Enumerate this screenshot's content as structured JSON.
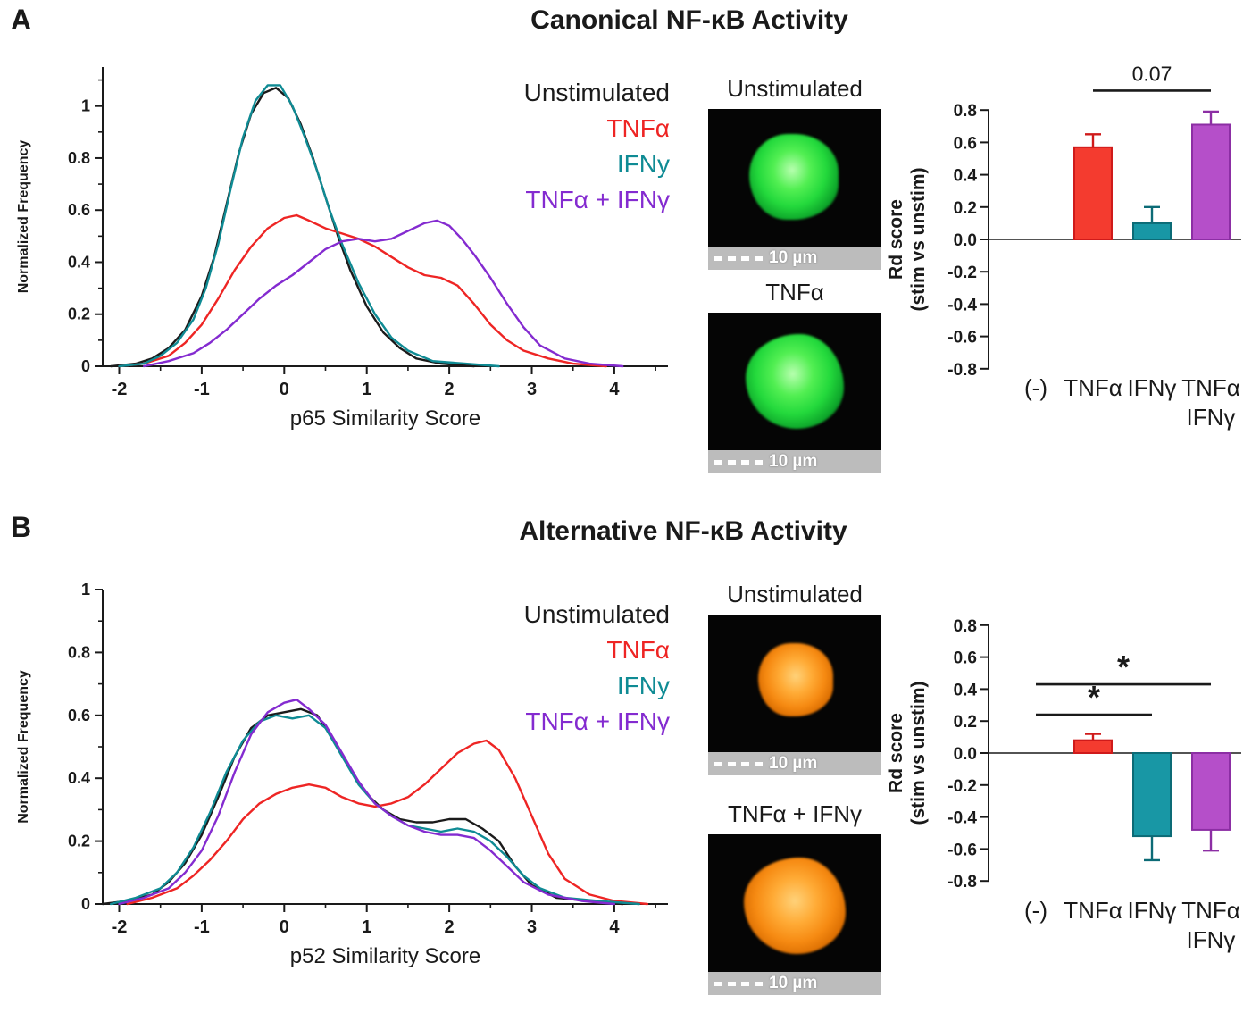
{
  "panels": [
    {
      "label": "A",
      "title": "Canonical NF-κB Activity",
      "images": [
        {
          "label": "Unstimulated",
          "scale_text": "10 µm",
          "stain": "green"
        },
        {
          "label": "TNFα",
          "scale_text": "10 µm",
          "stain": "green"
        }
      ]
    },
    {
      "label": "B",
      "title": "Alternative NF-κB Activity",
      "images": [
        {
          "label": "Unstimulated",
          "scale_text": "10 µm",
          "stain": "orange"
        },
        {
          "label": "TNFα + IFNγ",
          "scale_text": "10 µm",
          "stain": "orange"
        }
      ]
    }
  ],
  "chart_data": [
    {
      "id": "density-a",
      "type": "line",
      "panel": "A",
      "title": "Canonical NF-κB Activity",
      "xlabel": "p65 Similarity Score",
      "ylabel": "Normalized Frequency",
      "xlim": [
        -2.2,
        4.65
      ],
      "ylim": [
        0,
        1.15
      ],
      "xticks": [
        -2,
        -1,
        0,
        1,
        2,
        3,
        4
      ],
      "yticks": [
        0,
        0.2,
        0.4,
        0.6,
        0.8,
        1
      ],
      "legend_position": "top-right",
      "grid": false,
      "series": [
        {
          "name": "Unstimulated",
          "color": "#1b1b1b",
          "points": [
            [
              -2.1,
              0
            ],
            [
              -1.8,
              0.01
            ],
            [
              -1.6,
              0.03
            ],
            [
              -1.4,
              0.07
            ],
            [
              -1.2,
              0.14
            ],
            [
              -1.0,
              0.27
            ],
            [
              -0.85,
              0.42
            ],
            [
              -0.7,
              0.62
            ],
            [
              -0.55,
              0.82
            ],
            [
              -0.4,
              0.97
            ],
            [
              -0.25,
              1.05
            ],
            [
              -0.1,
              1.07
            ],
            [
              0.05,
              1.03
            ],
            [
              0.2,
              0.93
            ],
            [
              0.35,
              0.8
            ],
            [
              0.5,
              0.65
            ],
            [
              0.65,
              0.5
            ],
            [
              0.8,
              0.37
            ],
            [
              1.0,
              0.23
            ],
            [
              1.2,
              0.13
            ],
            [
              1.4,
              0.07
            ],
            [
              1.6,
              0.03
            ],
            [
              1.9,
              0.01
            ],
            [
              2.3,
              0
            ]
          ]
        },
        {
          "name": "TNFα",
          "color": "#ee2524",
          "points": [
            [
              -2.0,
              0
            ],
            [
              -1.7,
              0.01
            ],
            [
              -1.4,
              0.04
            ],
            [
              -1.2,
              0.09
            ],
            [
              -1.0,
              0.16
            ],
            [
              -0.8,
              0.26
            ],
            [
              -0.6,
              0.37
            ],
            [
              -0.4,
              0.46
            ],
            [
              -0.2,
              0.53
            ],
            [
              0.0,
              0.57
            ],
            [
              0.15,
              0.58
            ],
            [
              0.3,
              0.56
            ],
            [
              0.5,
              0.53
            ],
            [
              0.7,
              0.51
            ],
            [
              0.9,
              0.49
            ],
            [
              1.1,
              0.46
            ],
            [
              1.3,
              0.42
            ],
            [
              1.5,
              0.38
            ],
            [
              1.7,
              0.35
            ],
            [
              1.9,
              0.34
            ],
            [
              2.1,
              0.31
            ],
            [
              2.3,
              0.24
            ],
            [
              2.5,
              0.16
            ],
            [
              2.7,
              0.1
            ],
            [
              2.9,
              0.06
            ],
            [
              3.2,
              0.03
            ],
            [
              3.5,
              0.01
            ],
            [
              3.9,
              0
            ]
          ]
        },
        {
          "name": "IFNy",
          "color": "#0f8b94",
          "points": [
            [
              -2.0,
              0
            ],
            [
              -1.7,
              0.01
            ],
            [
              -1.5,
              0.04
            ],
            [
              -1.3,
              0.09
            ],
            [
              -1.1,
              0.18
            ],
            [
              -0.95,
              0.3
            ],
            [
              -0.8,
              0.47
            ],
            [
              -0.65,
              0.68
            ],
            [
              -0.5,
              0.88
            ],
            [
              -0.35,
              1.02
            ],
            [
              -0.2,
              1.08
            ],
            [
              -0.05,
              1.08
            ],
            [
              0.1,
              1.0
            ],
            [
              0.25,
              0.88
            ],
            [
              0.4,
              0.75
            ],
            [
              0.55,
              0.6
            ],
            [
              0.7,
              0.47
            ],
            [
              0.9,
              0.32
            ],
            [
              1.1,
              0.2
            ],
            [
              1.3,
              0.11
            ],
            [
              1.5,
              0.06
            ],
            [
              1.8,
              0.02
            ],
            [
              2.2,
              0.01
            ],
            [
              2.6,
              0
            ]
          ]
        },
        {
          "name": "TNFα + IFNγ",
          "color": "#842bd0",
          "points": [
            [
              -1.7,
              0
            ],
            [
              -1.4,
              0.02
            ],
            [
              -1.1,
              0.05
            ],
            [
              -0.9,
              0.09
            ],
            [
              -0.7,
              0.14
            ],
            [
              -0.5,
              0.2
            ],
            [
              -0.3,
              0.26
            ],
            [
              -0.1,
              0.31
            ],
            [
              0.1,
              0.35
            ],
            [
              0.3,
              0.4
            ],
            [
              0.5,
              0.45
            ],
            [
              0.7,
              0.48
            ],
            [
              0.9,
              0.49
            ],
            [
              1.1,
              0.48
            ],
            [
              1.3,
              0.49
            ],
            [
              1.5,
              0.52
            ],
            [
              1.7,
              0.55
            ],
            [
              1.85,
              0.56
            ],
            [
              2.0,
              0.54
            ],
            [
              2.15,
              0.49
            ],
            [
              2.3,
              0.43
            ],
            [
              2.5,
              0.34
            ],
            [
              2.7,
              0.24
            ],
            [
              2.9,
              0.15
            ],
            [
              3.1,
              0.08
            ],
            [
              3.4,
              0.03
            ],
            [
              3.7,
              0.01
            ],
            [
              4.1,
              0
            ]
          ]
        }
      ]
    },
    {
      "id": "bar-a",
      "type": "bar",
      "panel": "A",
      "title": "Rd score (stim vs unstim) — canonical",
      "ylabel_lines": [
        "Rd score",
        "(stim vs unstim)"
      ],
      "ylim": [
        -0.8,
        0.8
      ],
      "yticks": [
        -0.8,
        -0.6,
        -0.4,
        -0.2,
        0,
        0.2,
        0.4,
        0.6,
        0.8
      ],
      "categories": [
        [
          "(-)"
        ],
        [
          "TNFα"
        ],
        [
          "IFNγ"
        ],
        [
          "TNFα",
          "IFNγ"
        ]
      ],
      "values": [
        null,
        0.57,
        0.1,
        0.71
      ],
      "errors": [
        null,
        0.08,
        0.1,
        0.08
      ],
      "bar_colors": [
        null,
        "#f43b2f",
        "#1897a5",
        "#b54fc9"
      ],
      "bar_edge_colors": [
        null,
        "#cf1a1a",
        "#0c6b76",
        "#8c2ea4"
      ],
      "annotations": [
        {
          "from": 1,
          "to": 3,
          "y": 0.92,
          "label": "0.07"
        }
      ]
    },
    {
      "id": "density-b",
      "type": "line",
      "panel": "B",
      "title": "Alternative NF-κB Activity",
      "xlabel": "p52 Similarity Score",
      "ylabel": "Normalized Frequency",
      "xlim": [
        -2.2,
        4.65
      ],
      "ylim": [
        0,
        1.0
      ],
      "xticks": [
        -2,
        -1,
        0,
        1,
        2,
        3,
        4
      ],
      "yticks": [
        0,
        0.2,
        0.4,
        0.6,
        0.8,
        1
      ],
      "legend_position": "top-right",
      "grid": false,
      "series": [
        {
          "name": "Unstimulated",
          "color": "#1b1b1b",
          "points": [
            [
              -2.2,
              0
            ],
            [
              -1.9,
              0.01
            ],
            [
              -1.6,
              0.03
            ],
            [
              -1.4,
              0.07
            ],
            [
              -1.2,
              0.13
            ],
            [
              -1.0,
              0.22
            ],
            [
              -0.8,
              0.34
            ],
            [
              -0.6,
              0.47
            ],
            [
              -0.4,
              0.56
            ],
            [
              -0.2,
              0.6
            ],
            [
              0.0,
              0.61
            ],
            [
              0.2,
              0.62
            ],
            [
              0.4,
              0.6
            ],
            [
              0.6,
              0.52
            ],
            [
              0.8,
              0.43
            ],
            [
              1.0,
              0.35
            ],
            [
              1.2,
              0.3
            ],
            [
              1.4,
              0.27
            ],
            [
              1.6,
              0.26
            ],
            [
              1.8,
              0.26
            ],
            [
              2.0,
              0.27
            ],
            [
              2.2,
              0.27
            ],
            [
              2.4,
              0.24
            ],
            [
              2.6,
              0.2
            ],
            [
              2.8,
              0.12
            ],
            [
              3.0,
              0.06
            ],
            [
              3.3,
              0.02
            ],
            [
              3.7,
              0.01
            ],
            [
              4.1,
              0
            ]
          ]
        },
        {
          "name": "TNFα",
          "color": "#ee2524",
          "points": [
            [
              -1.9,
              0
            ],
            [
              -1.6,
              0.02
            ],
            [
              -1.3,
              0.05
            ],
            [
              -1.1,
              0.09
            ],
            [
              -0.9,
              0.14
            ],
            [
              -0.7,
              0.2
            ],
            [
              -0.5,
              0.27
            ],
            [
              -0.3,
              0.32
            ],
            [
              -0.1,
              0.35
            ],
            [
              0.1,
              0.37
            ],
            [
              0.3,
              0.38
            ],
            [
              0.5,
              0.37
            ],
            [
              0.7,
              0.34
            ],
            [
              0.9,
              0.32
            ],
            [
              1.1,
              0.31
            ],
            [
              1.3,
              0.32
            ],
            [
              1.5,
              0.34
            ],
            [
              1.7,
              0.38
            ],
            [
              1.9,
              0.43
            ],
            [
              2.1,
              0.48
            ],
            [
              2.3,
              0.51
            ],
            [
              2.45,
              0.52
            ],
            [
              2.6,
              0.49
            ],
            [
              2.8,
              0.4
            ],
            [
              3.0,
              0.28
            ],
            [
              3.2,
              0.16
            ],
            [
              3.4,
              0.08
            ],
            [
              3.7,
              0.03
            ],
            [
              4.0,
              0.01
            ],
            [
              4.4,
              0
            ]
          ]
        },
        {
          "name": "IFNy",
          "color": "#0f8b94",
          "points": [
            [
              -2.1,
              0
            ],
            [
              -1.8,
              0.02
            ],
            [
              -1.5,
              0.05
            ],
            [
              -1.3,
              0.1
            ],
            [
              -1.1,
              0.18
            ],
            [
              -0.9,
              0.29
            ],
            [
              -0.7,
              0.42
            ],
            [
              -0.5,
              0.52
            ],
            [
              -0.3,
              0.58
            ],
            [
              -0.1,
              0.6
            ],
            [
              0.1,
              0.59
            ],
            [
              0.3,
              0.6
            ],
            [
              0.5,
              0.56
            ],
            [
              0.7,
              0.47
            ],
            [
              0.9,
              0.38
            ],
            [
              1.1,
              0.32
            ],
            [
              1.3,
              0.28
            ],
            [
              1.5,
              0.25
            ],
            [
              1.7,
              0.24
            ],
            [
              1.9,
              0.23
            ],
            [
              2.1,
              0.24
            ],
            [
              2.3,
              0.23
            ],
            [
              2.5,
              0.2
            ],
            [
              2.7,
              0.15
            ],
            [
              2.9,
              0.09
            ],
            [
              3.1,
              0.05
            ],
            [
              3.4,
              0.02
            ],
            [
              3.8,
              0.01
            ],
            [
              4.3,
              0
            ]
          ]
        },
        {
          "name": "TNFα + IFNγ",
          "color": "#842bd0",
          "points": [
            [
              -2.0,
              0
            ],
            [
              -1.7,
              0.02
            ],
            [
              -1.4,
              0.05
            ],
            [
              -1.2,
              0.1
            ],
            [
              -1.0,
              0.17
            ],
            [
              -0.8,
              0.28
            ],
            [
              -0.6,
              0.42
            ],
            [
              -0.4,
              0.54
            ],
            [
              -0.2,
              0.61
            ],
            [
              0.0,
              0.64
            ],
            [
              0.15,
              0.65
            ],
            [
              0.3,
              0.62
            ],
            [
              0.5,
              0.57
            ],
            [
              0.7,
              0.48
            ],
            [
              0.9,
              0.39
            ],
            [
              1.1,
              0.32
            ],
            [
              1.3,
              0.28
            ],
            [
              1.5,
              0.25
            ],
            [
              1.7,
              0.23
            ],
            [
              1.9,
              0.22
            ],
            [
              2.1,
              0.22
            ],
            [
              2.3,
              0.21
            ],
            [
              2.5,
              0.17
            ],
            [
              2.7,
              0.12
            ],
            [
              2.9,
              0.07
            ],
            [
              3.2,
              0.03
            ],
            [
              3.6,
              0.01
            ],
            [
              4.0,
              0
            ]
          ]
        }
      ]
    },
    {
      "id": "bar-b",
      "type": "bar",
      "panel": "B",
      "title": "Rd score (stim vs unstim) — alternative",
      "ylabel_lines": [
        "Rd score",
        "(stim vs unstim)"
      ],
      "ylim": [
        -0.8,
        0.8
      ],
      "yticks": [
        -0.8,
        -0.6,
        -0.4,
        -0.2,
        0,
        0.2,
        0.4,
        0.6,
        0.8
      ],
      "categories": [
        [
          "(-)"
        ],
        [
          "TNFα"
        ],
        [
          "IFNγ"
        ],
        [
          "TNFα",
          "IFNγ"
        ]
      ],
      "values": [
        null,
        0.08,
        -0.52,
        -0.48
      ],
      "errors": [
        null,
        0.04,
        0.15,
        0.13
      ],
      "bar_colors": [
        null,
        "#f43b2f",
        "#1897a5",
        "#b54fc9"
      ],
      "bar_edge_colors": [
        null,
        "#cf1a1a",
        "#0c6b76",
        "#8c2ea4"
      ],
      "annotations": [
        {
          "from": 0,
          "to": 3,
          "y": 0.43,
          "label": "*"
        },
        {
          "from": 0,
          "to": 2,
          "y": 0.24,
          "label": "*"
        }
      ]
    }
  ]
}
